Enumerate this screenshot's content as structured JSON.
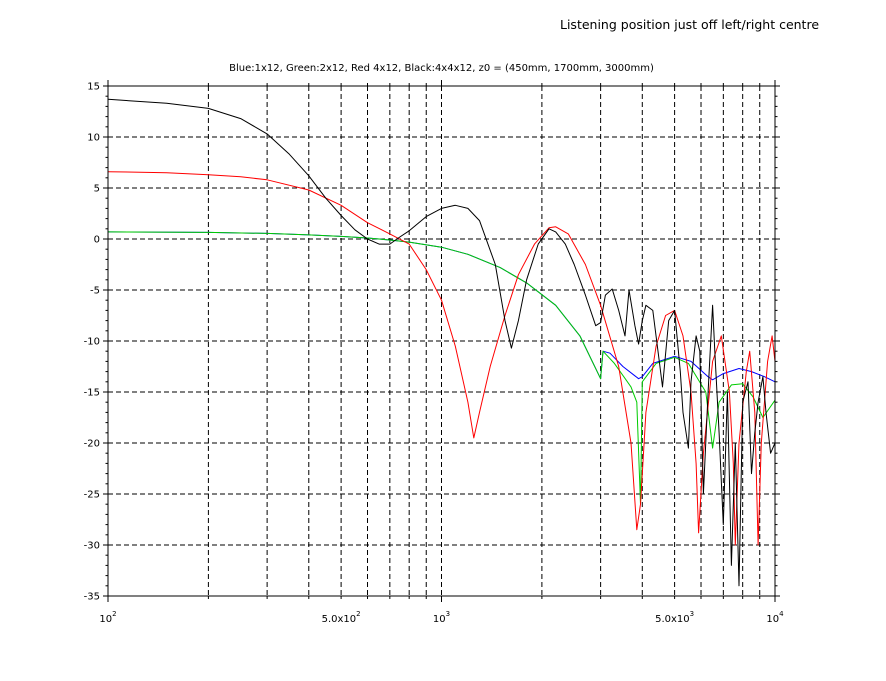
{
  "window": {
    "title": "Listening position just off left/right centre"
  },
  "chart_data": {
    "type": "line",
    "title": "Blue:1x12, Green:2x12, Red 4x12, Black:4x4x12, z0 = (450mm, 1700mm, 3000mm)",
    "xscale": "log",
    "xlim": [
      100,
      10000
    ],
    "ylim": [
      -35,
      15
    ],
    "grid": true,
    "xlabel": "",
    "ylabel": "",
    "x_tick_labels": [
      {
        "value": 100,
        "base": "10",
        "exp": "2"
      },
      {
        "value": 500,
        "text": "5.0x10",
        "exp": "2"
      },
      {
        "value": 1000,
        "base": "10",
        "exp": "3"
      },
      {
        "value": 5000,
        "text": "5.0x10",
        "exp": "3"
      },
      {
        "value": 10000,
        "base": "10",
        "exp": "4"
      }
    ],
    "y_ticks": [
      15,
      10,
      5,
      0,
      -5,
      -10,
      -15,
      -20,
      -25,
      -30,
      -35
    ],
    "series": [
      {
        "color": "#0000ff",
        "points": [
          [
            100,
            0.7
          ],
          [
            200,
            0.65
          ],
          [
            300,
            0.55
          ],
          [
            400,
            0.4
          ],
          [
            500,
            0.25
          ],
          [
            600,
            0.1
          ],
          [
            700,
            -0.1
          ],
          [
            800,
            -0.3
          ],
          [
            1000,
            -0.8
          ],
          [
            1200,
            -1.5
          ],
          [
            1500,
            -2.8
          ],
          [
            1800,
            -4.3
          ],
          [
            2200,
            -6.5
          ],
          [
            2600,
            -9.5
          ],
          [
            3000,
            -13.7
          ],
          [
            3050,
            -11
          ],
          [
            3200,
            -11.2
          ],
          [
            3500,
            -12.5
          ],
          [
            3900,
            -13.7
          ],
          [
            4000,
            -13.5
          ],
          [
            4300,
            -12.2
          ],
          [
            5000,
            -11.5
          ],
          [
            5600,
            -12
          ],
          [
            6300,
            -13.5
          ],
          [
            6500,
            -13.8
          ],
          [
            7000,
            -13.2
          ],
          [
            7800,
            -12.7
          ],
          [
            8500,
            -13
          ],
          [
            9300,
            -13.5
          ],
          [
            10000,
            -14
          ]
        ]
      },
      {
        "color": "#00cc00",
        "points": [
          [
            100,
            0.7
          ],
          [
            200,
            0.65
          ],
          [
            300,
            0.55
          ],
          [
            400,
            0.4
          ],
          [
            500,
            0.25
          ],
          [
            600,
            0.1
          ],
          [
            700,
            -0.1
          ],
          [
            800,
            -0.3
          ],
          [
            1000,
            -0.8
          ],
          [
            1200,
            -1.5
          ],
          [
            1500,
            -2.8
          ],
          [
            1800,
            -4.3
          ],
          [
            2200,
            -6.5
          ],
          [
            2600,
            -9.5
          ],
          [
            3000,
            -13.7
          ],
          [
            3050,
            -11
          ],
          [
            3300,
            -12.2
          ],
          [
            3700,
            -14.5
          ],
          [
            3850,
            -16
          ],
          [
            3950,
            -26
          ],
          [
            4000,
            -14
          ],
          [
            4400,
            -12.2
          ],
          [
            5000,
            -11.6
          ],
          [
            5500,
            -12.2
          ],
          [
            6200,
            -15
          ],
          [
            6500,
            -20.5
          ],
          [
            6800,
            -16
          ],
          [
            7400,
            -14.3
          ],
          [
            8000,
            -14.2
          ],
          [
            8600,
            -15.5
          ],
          [
            9200,
            -17.5
          ],
          [
            10000,
            -15.8
          ]
        ]
      },
      {
        "color": "#ff0000",
        "points": [
          [
            100,
            6.6
          ],
          [
            150,
            6.5
          ],
          [
            200,
            6.3
          ],
          [
            250,
            6.1
          ],
          [
            300,
            5.8
          ],
          [
            400,
            4.8
          ],
          [
            500,
            3.3
          ],
          [
            600,
            1.6
          ],
          [
            700,
            0.5
          ],
          [
            800,
            -0.5
          ],
          [
            900,
            -3
          ],
          [
            1000,
            -6
          ],
          [
            1100,
            -10.5
          ],
          [
            1200,
            -16
          ],
          [
            1250,
            -19.5
          ],
          [
            1300,
            -17
          ],
          [
            1400,
            -12.5
          ],
          [
            1550,
            -7.5
          ],
          [
            1700,
            -3.5
          ],
          [
            1900,
            -0.5
          ],
          [
            2100,
            1.1
          ],
          [
            2200,
            1.2
          ],
          [
            2400,
            0.5
          ],
          [
            2700,
            -2.5
          ],
          [
            3000,
            -6.5
          ],
          [
            3400,
            -12.5
          ],
          [
            3700,
            -20
          ],
          [
            3850,
            -28.5
          ],
          [
            3950,
            -26
          ],
          [
            4100,
            -17
          ],
          [
            4400,
            -10.5
          ],
          [
            4700,
            -7.5
          ],
          [
            5000,
            -7
          ],
          [
            5300,
            -9.5
          ],
          [
            5600,
            -15
          ],
          [
            5800,
            -22
          ],
          [
            5900,
            -28.8
          ],
          [
            6100,
            -21
          ],
          [
            6500,
            -12
          ],
          [
            6900,
            -9.5
          ],
          [
            7300,
            -15
          ],
          [
            7500,
            -22
          ],
          [
            7600,
            -30
          ],
          [
            7800,
            -20
          ],
          [
            8200,
            -13
          ],
          [
            8400,
            -11
          ],
          [
            8700,
            -17
          ],
          [
            8900,
            -30
          ],
          [
            9100,
            -20
          ],
          [
            9500,
            -12
          ],
          [
            9800,
            -9.5
          ],
          [
            10000,
            -12
          ]
        ]
      },
      {
        "color": "#000000",
        "points": [
          [
            100,
            13.7
          ],
          [
            150,
            13.3
          ],
          [
            200,
            12.8
          ],
          [
            250,
            11.8
          ],
          [
            300,
            10.3
          ],
          [
            350,
            8.3
          ],
          [
            400,
            6.2
          ],
          [
            450,
            4
          ],
          [
            500,
            2.3
          ],
          [
            550,
            0.9
          ],
          [
            600,
            0
          ],
          [
            650,
            -0.5
          ],
          [
            700,
            -0.5
          ],
          [
            750,
            0.2
          ],
          [
            800,
            0.8
          ],
          [
            900,
            2.2
          ],
          [
            1000,
            3
          ],
          [
            1100,
            3.3
          ],
          [
            1200,
            3
          ],
          [
            1300,
            1.8
          ],
          [
            1450,
            -2.5
          ],
          [
            1550,
            -8
          ],
          [
            1620,
            -10.7
          ],
          [
            1700,
            -8
          ],
          [
            1800,
            -4
          ],
          [
            1950,
            -0.5
          ],
          [
            2100,
            1
          ],
          [
            2200,
            0.7
          ],
          [
            2350,
            -0.5
          ],
          [
            2500,
            -2.5
          ],
          [
            2700,
            -5.5
          ],
          [
            2900,
            -8.5
          ],
          [
            3000,
            -8.2
          ],
          [
            3100,
            -5.5
          ],
          [
            3250,
            -4.9
          ],
          [
            3400,
            -7
          ],
          [
            3550,
            -9.5
          ],
          [
            3650,
            -5
          ],
          [
            3800,
            -8.5
          ],
          [
            3900,
            -10.3
          ],
          [
            4000,
            -8
          ],
          [
            4100,
            -6.5
          ],
          [
            4300,
            -7
          ],
          [
            4500,
            -12
          ],
          [
            4600,
            -14.5
          ],
          [
            4800,
            -8
          ],
          [
            5000,
            -7
          ],
          [
            5200,
            -13
          ],
          [
            5300,
            -17
          ],
          [
            5500,
            -20.5
          ],
          [
            5600,
            -14
          ],
          [
            5800,
            -9.5
          ],
          [
            5950,
            -11
          ],
          [
            6100,
            -25
          ],
          [
            6300,
            -15
          ],
          [
            6500,
            -6.5
          ],
          [
            6600,
            -11
          ],
          [
            6800,
            -19
          ],
          [
            7000,
            -28
          ],
          [
            7200,
            -15
          ],
          [
            7400,
            -32
          ],
          [
            7600,
            -20
          ],
          [
            7800,
            -34
          ],
          [
            8000,
            -16
          ],
          [
            8300,
            -14
          ],
          [
            8500,
            -23
          ],
          [
            8700,
            -19
          ],
          [
            8900,
            -16
          ],
          [
            9200,
            -13.5
          ],
          [
            9400,
            -17
          ],
          [
            9700,
            -21
          ],
          [
            10000,
            -20
          ]
        ]
      }
    ]
  }
}
